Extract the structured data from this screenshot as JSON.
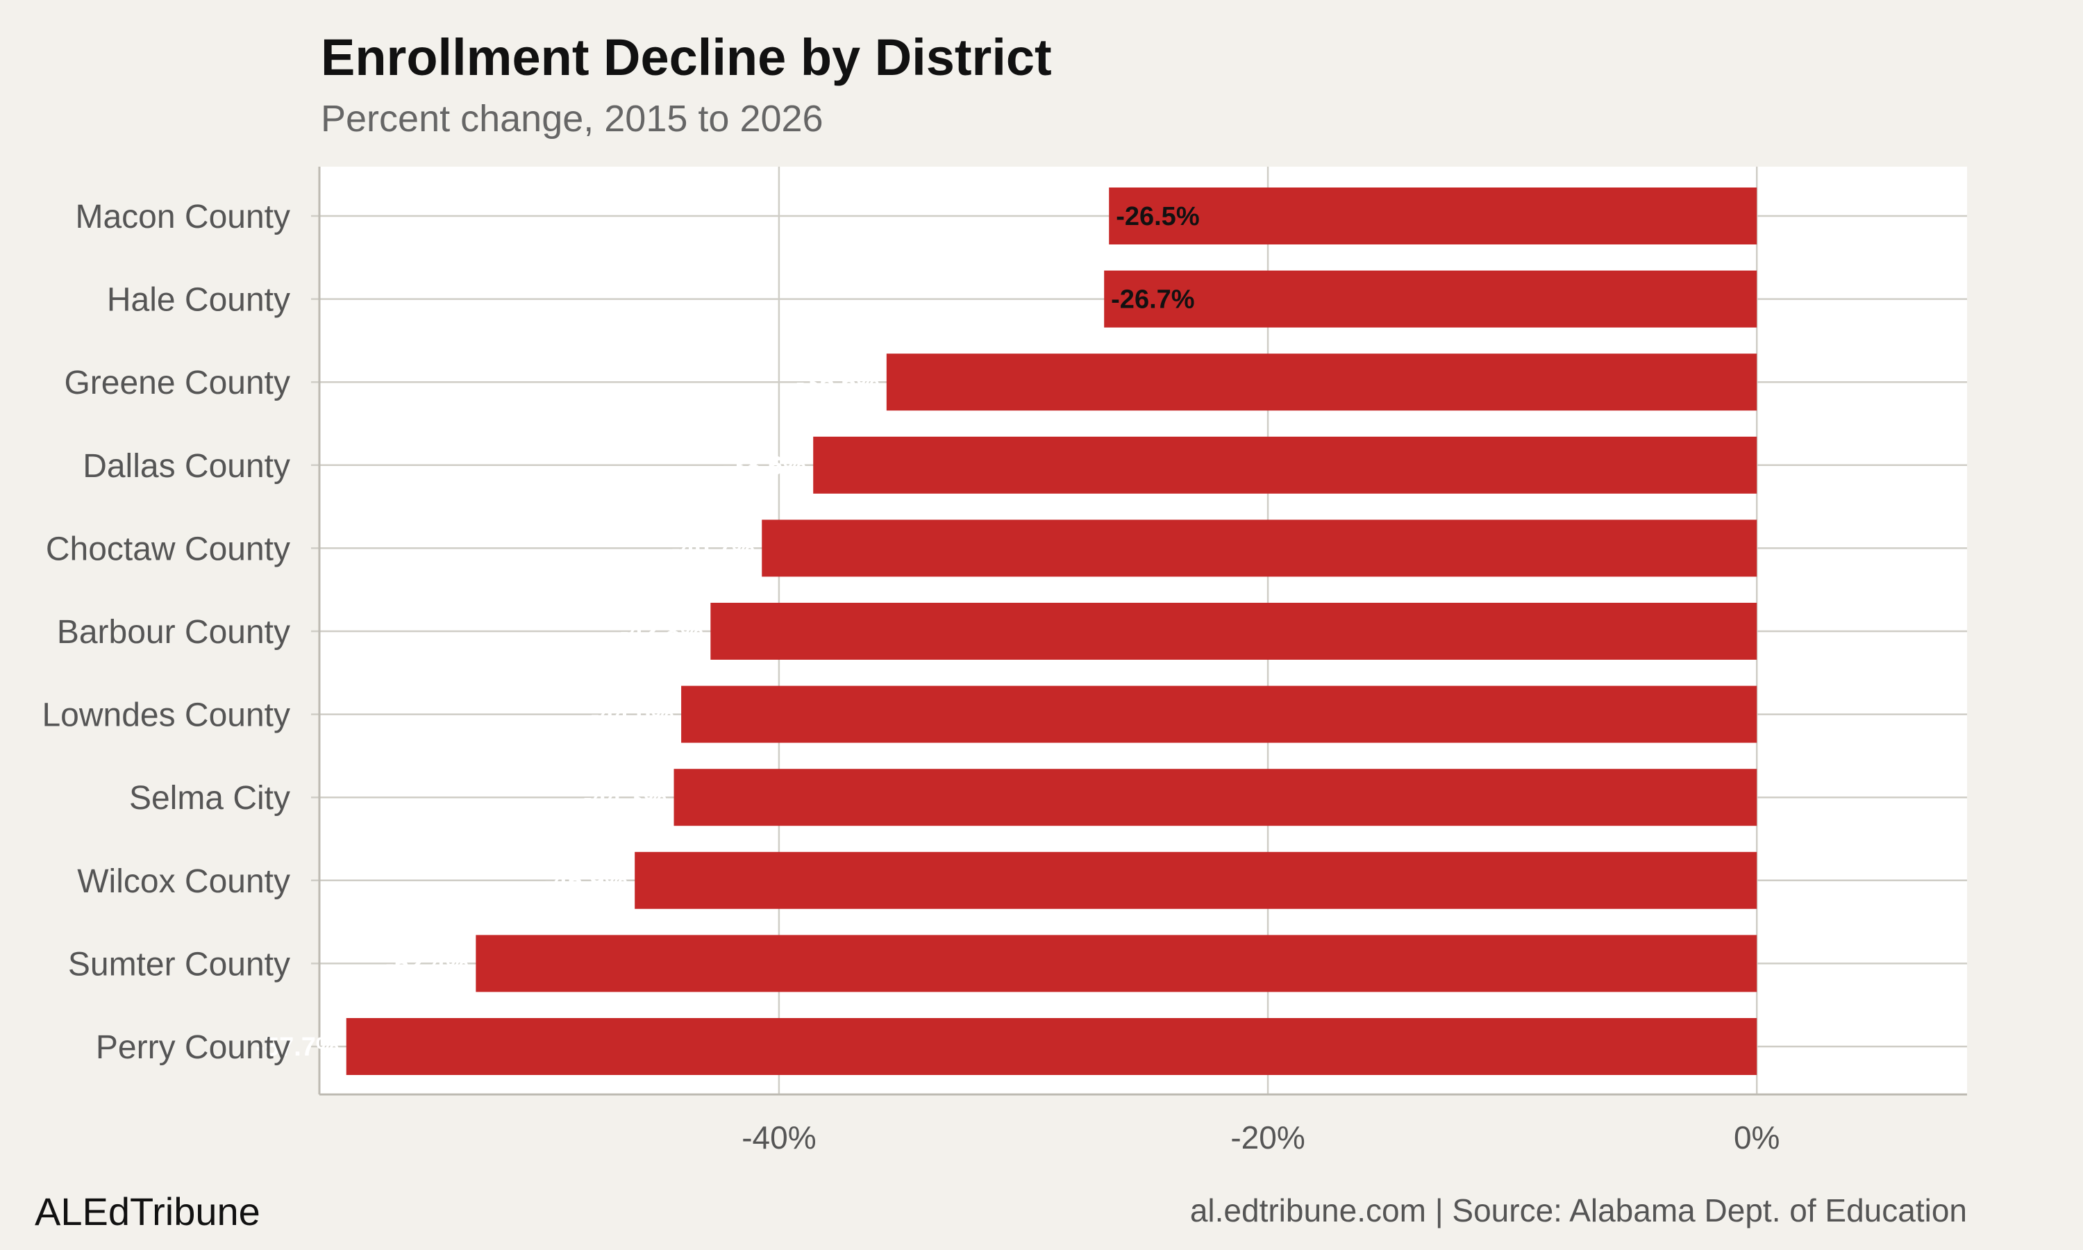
{
  "title": "Enrollment Decline by District",
  "subtitle": "Percent change, 2015 to 2026",
  "brand": "ALEdTribune",
  "credit": "al.edtribune.com | Source: Alabama Dept. of Education",
  "colors": {
    "background": "#f3f1ec",
    "panel": "#ffffff",
    "bar": "#c62828",
    "grid": "#cfcdc6",
    "label_inside": "#111111",
    "label_outside": "#ffffff"
  },
  "chart_data": {
    "type": "bar",
    "orientation": "horizontal",
    "title": "Enrollment Decline by District",
    "subtitle": "Percent change, 2015 to 2026",
    "xlabel": "",
    "ylabel": "",
    "xlim": [
      -58.8,
      8.6
    ],
    "xticks": [
      -40,
      -20,
      0
    ],
    "xtick_labels": [
      "-40%",
      "-20%",
      "0%"
    ],
    "grid": true,
    "categories": [
      "Macon County",
      "Hale County",
      "Greene County",
      "Dallas County",
      "Choctaw County",
      "Barbour County",
      "Lowndes County",
      "Selma City",
      "Wilcox County",
      "Sumter County",
      "Perry County"
    ],
    "values": [
      -26.5,
      -26.7,
      -35.6,
      -38.6,
      -40.7,
      -42.8,
      -44.0,
      -44.3,
      -45.9,
      -52.4,
      -57.7
    ],
    "labels": [
      "-26.5%",
      "-26.7%",
      "-35.6%",
      "-38.6%",
      "-40.7%",
      "-42.8%",
      "-44.0%",
      "-44.3%",
      "-45.9%",
      "-52.4%",
      "-57.7%"
    ]
  }
}
